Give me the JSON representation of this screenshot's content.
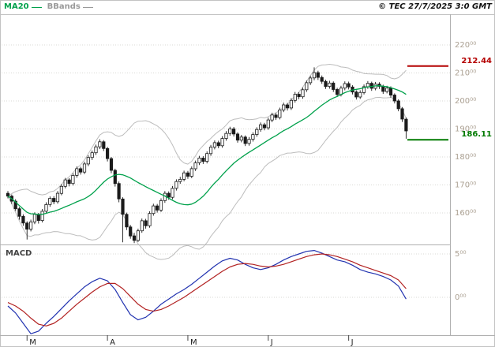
{
  "header": {
    "copyright": "© TEC 27/7/2025 3:0 GMT",
    "legend": [
      {
        "label": "MA20",
        "color": "#00a14b"
      },
      {
        "label": "BBands",
        "color": "#9a9a9a"
      }
    ]
  },
  "levels": {
    "resistance": {
      "value": "212.44",
      "color": "#b40000"
    },
    "support": {
      "value": "186.11",
      "color": "#007a00"
    }
  },
  "colors": {
    "candle": "#1a1a1a",
    "ma20": "#00a14b",
    "bbands": "#bcbcbc",
    "grid": "#d9d9d4",
    "axis_text": "#aba092",
    "frame": "#c3c3c3",
    "macd_line": "#2233b0",
    "macd_signal": "#b22222"
  },
  "chart_data": [
    {
      "type": "candlestick",
      "title": "",
      "xlabel": "",
      "ylabel": "",
      "ylim": [
        148,
        231
      ],
      "yticks": [
        160,
        170,
        180,
        190,
        200,
        210,
        220
      ],
      "ytick_superscript": "00",
      "grid": true,
      "overlays": [
        "MA20",
        "Bollinger Bands"
      ],
      "indicator_config": {
        "ma_period": 20,
        "bb_period": 20,
        "bb_std": 2
      },
      "levels": [
        {
          "name": "resistance",
          "value": 212.44,
          "color": "#b40000"
        },
        {
          "name": "support",
          "value": 186.11,
          "color": "#007a00"
        }
      ],
      "x_month_ticks": [
        {
          "label": "M",
          "index": 5
        },
        {
          "label": "A",
          "index": 26
        },
        {
          "label": "M",
          "index": 47
        },
        {
          "label": "J",
          "index": 68
        },
        {
          "label": "J",
          "index": 89
        }
      ],
      "ohlc": [
        [
          167.0,
          167.8,
          165.2,
          166.0
        ],
        [
          166.0,
          166.6,
          163.2,
          164.2
        ],
        [
          164.2,
          164.9,
          160.7,
          161.5
        ],
        [
          161.5,
          162.1,
          157.6,
          158.8
        ],
        [
          158.8,
          159.5,
          155.4,
          156.4
        ],
        [
          156.4,
          157.0,
          150.5,
          154.2
        ],
        [
          154.2,
          157.6,
          153.4,
          156.8
        ],
        [
          156.8,
          160.2,
          156.0,
          159.5
        ],
        [
          159.5,
          160.0,
          156.2,
          157.3
        ],
        [
          157.3,
          161.4,
          156.6,
          160.6
        ],
        [
          160.6,
          163.8,
          159.9,
          163.0
        ],
        [
          163.0,
          165.9,
          162.2,
          165.2
        ],
        [
          165.2,
          166.0,
          163.1,
          164.0
        ],
        [
          164.0,
          167.8,
          163.3,
          167.0
        ],
        [
          167.0,
          170.3,
          166.3,
          169.5
        ],
        [
          169.5,
          172.5,
          168.8,
          171.8
        ],
        [
          171.8,
          172.4,
          169.5,
          170.5
        ],
        [
          170.5,
          174.2,
          169.8,
          173.4
        ],
        [
          173.4,
          176.6,
          172.6,
          175.8
        ],
        [
          175.8,
          176.5,
          173.7,
          174.6
        ],
        [
          174.6,
          178.3,
          173.9,
          177.5
        ],
        [
          177.5,
          180.6,
          176.7,
          179.8
        ],
        [
          179.8,
          182.3,
          178.9,
          181.5
        ],
        [
          181.5,
          184.4,
          180.7,
          183.6
        ],
        [
          183.6,
          186.3,
          182.8,
          185.4
        ],
        [
          185.4,
          186.0,
          182.1,
          183.0
        ],
        [
          183.0,
          183.6,
          178.4,
          179.4
        ],
        [
          179.4,
          180.0,
          174.2,
          175.2
        ],
        [
          175.2,
          175.8,
          169.4,
          170.5
        ],
        [
          170.5,
          171.2,
          163.8,
          165.0
        ],
        [
          165.0,
          165.6,
          149.5,
          159.5
        ],
        [
          159.5,
          160.1,
          153.9,
          155.0
        ],
        [
          155.0,
          155.7,
          150.8,
          151.8
        ],
        [
          151.8,
          152.9,
          149.2,
          150.2
        ],
        [
          150.2,
          154.4,
          149.6,
          153.6
        ],
        [
          153.6,
          158.0,
          152.9,
          157.2
        ],
        [
          157.2,
          157.9,
          154.4,
          155.4
        ],
        [
          155.4,
          160.6,
          154.7,
          159.8
        ],
        [
          159.8,
          163.3,
          159.0,
          162.5
        ],
        [
          162.5,
          163.2,
          160.1,
          161.0
        ],
        [
          161.0,
          165.2,
          160.3,
          164.4
        ],
        [
          164.4,
          167.8,
          163.6,
          167.0
        ],
        [
          167.0,
          167.7,
          164.7,
          165.6
        ],
        [
          165.6,
          169.6,
          164.9,
          168.8
        ],
        [
          168.8,
          172.0,
          168.0,
          171.2
        ],
        [
          171.2,
          172.9,
          170.4,
          172.0
        ],
        [
          172.0,
          175.1,
          171.3,
          174.3
        ],
        [
          174.3,
          175.0,
          172.2,
          173.1
        ],
        [
          173.1,
          176.6,
          172.4,
          175.8
        ],
        [
          175.8,
          178.7,
          175.0,
          177.9
        ],
        [
          177.9,
          180.4,
          177.1,
          179.6
        ],
        [
          179.6,
          180.3,
          177.5,
          178.4
        ],
        [
          178.4,
          182.0,
          177.7,
          181.2
        ],
        [
          181.2,
          184.3,
          180.4,
          183.5
        ],
        [
          183.5,
          185.9,
          182.7,
          185.1
        ],
        [
          185.1,
          185.8,
          183.1,
          184.0
        ],
        [
          184.0,
          187.4,
          183.3,
          186.6
        ],
        [
          186.6,
          189.2,
          185.8,
          188.4
        ],
        [
          188.4,
          190.8,
          187.6,
          190.0
        ],
        [
          190.0,
          190.7,
          187.3,
          188.2
        ],
        [
          188.2,
          188.8,
          185.1,
          186.0
        ],
        [
          186.0,
          187.9,
          185.2,
          187.1
        ],
        [
          187.1,
          187.7,
          183.9,
          184.8
        ],
        [
          184.8,
          187.1,
          184.0,
          186.3
        ],
        [
          186.3,
          188.8,
          185.5,
          188.0
        ],
        [
          188.0,
          190.6,
          187.2,
          189.8
        ],
        [
          189.8,
          192.3,
          189.0,
          191.5
        ],
        [
          191.5,
          192.2,
          189.5,
          190.4
        ],
        [
          190.4,
          194.0,
          189.7,
          193.2
        ],
        [
          193.2,
          195.8,
          192.4,
          195.0
        ],
        [
          195.0,
          195.7,
          193.2,
          194.1
        ],
        [
          194.1,
          197.6,
          193.4,
          196.8
        ],
        [
          196.8,
          199.4,
          196.0,
          198.6
        ],
        [
          198.6,
          199.3,
          196.6,
          197.5
        ],
        [
          197.5,
          201.0,
          196.8,
          200.2
        ],
        [
          200.2,
          203.2,
          199.4,
          202.4
        ],
        [
          202.4,
          203.1,
          200.6,
          201.5
        ],
        [
          201.5,
          204.8,
          200.8,
          204.0
        ],
        [
          204.0,
          207.3,
          203.2,
          206.5
        ],
        [
          206.5,
          209.0,
          205.7,
          208.2
        ],
        [
          208.2,
          212.0,
          207.4,
          210.1
        ],
        [
          210.1,
          210.8,
          207.5,
          208.4
        ],
        [
          208.4,
          209.1,
          206.1,
          207.0
        ],
        [
          207.0,
          207.6,
          204.3,
          205.2
        ],
        [
          205.2,
          207.2,
          204.4,
          206.4
        ],
        [
          206.4,
          207.0,
          203.2,
          204.1
        ],
        [
          204.1,
          204.7,
          201.4,
          202.3
        ],
        [
          202.3,
          205.4,
          201.6,
          204.6
        ],
        [
          204.6,
          207.0,
          203.8,
          206.2
        ],
        [
          206.2,
          206.9,
          204.1,
          205.0
        ],
        [
          205.0,
          205.6,
          202.3,
          203.2
        ],
        [
          203.2,
          203.8,
          200.5,
          201.4
        ],
        [
          201.4,
          203.8,
          200.7,
          203.0
        ],
        [
          203.0,
          205.9,
          202.3,
          205.1
        ],
        [
          205.1,
          207.1,
          204.3,
          206.3
        ],
        [
          206.3,
          206.9,
          203.6,
          204.5
        ],
        [
          204.5,
          206.8,
          203.8,
          206.0
        ],
        [
          206.0,
          206.7,
          204.3,
          205.2
        ],
        [
          205.2,
          205.8,
          202.5,
          203.4
        ],
        [
          203.4,
          205.4,
          202.7,
          204.6
        ],
        [
          204.6,
          205.2,
          201.2,
          202.1
        ],
        [
          202.1,
          202.7,
          199.1,
          200.0
        ],
        [
          200.0,
          200.6,
          196.3,
          197.2
        ],
        [
          197.2,
          197.8,
          192.5,
          193.5
        ],
        [
          193.5,
          194.1,
          186.5,
          189.3
        ]
      ]
    },
    {
      "type": "line",
      "title": "MACD",
      "xlabel": "",
      "ylabel": "",
      "ylim": [
        -4.5,
        5.8
      ],
      "yticks": [
        5,
        0
      ],
      "ytick_superscript": "00",
      "series": [
        {
          "name": "MACD",
          "color": "#2233b0",
          "points": [
            [
              0,
              -1.0
            ],
            [
              2,
              -1.8
            ],
            [
              4,
              -3.0
            ],
            [
              6,
              -4.2
            ],
            [
              8,
              -3.9
            ],
            [
              10,
              -3.0
            ],
            [
              12,
              -2.2
            ],
            [
              14,
              -1.3
            ],
            [
              16,
              -0.4
            ],
            [
              18,
              0.4
            ],
            [
              20,
              1.2
            ],
            [
              22,
              1.8
            ],
            [
              24,
              2.2
            ],
            [
              26,
              1.9
            ],
            [
              28,
              0.9
            ],
            [
              30,
              -0.6
            ],
            [
              32,
              -2.0
            ],
            [
              34,
              -2.6
            ],
            [
              36,
              -2.3
            ],
            [
              38,
              -1.6
            ],
            [
              40,
              -0.8
            ],
            [
              42,
              -0.2
            ],
            [
              44,
              0.4
            ],
            [
              46,
              0.9
            ],
            [
              48,
              1.5
            ],
            [
              50,
              2.2
            ],
            [
              52,
              2.9
            ],
            [
              54,
              3.6
            ],
            [
              56,
              4.2
            ],
            [
              58,
              4.5
            ],
            [
              60,
              4.3
            ],
            [
              62,
              3.8
            ],
            [
              64,
              3.4
            ],
            [
              66,
              3.2
            ],
            [
              68,
              3.4
            ],
            [
              70,
              3.8
            ],
            [
              72,
              4.3
            ],
            [
              74,
              4.7
            ],
            [
              76,
              5.0
            ],
            [
              78,
              5.3
            ],
            [
              80,
              5.4
            ],
            [
              82,
              5.1
            ],
            [
              84,
              4.7
            ],
            [
              86,
              4.3
            ],
            [
              88,
              4.1
            ],
            [
              90,
              3.7
            ],
            [
              92,
              3.2
            ],
            [
              94,
              2.9
            ],
            [
              96,
              2.7
            ],
            [
              98,
              2.4
            ],
            [
              100,
              2.0
            ],
            [
              102,
              1.3
            ],
            [
              104,
              -0.2
            ]
          ]
        },
        {
          "name": "Signal",
          "color": "#b22222",
          "points": [
            [
              0,
              -0.6
            ],
            [
              2,
              -1.0
            ],
            [
              4,
              -1.6
            ],
            [
              6,
              -2.4
            ],
            [
              8,
              -3.1
            ],
            [
              10,
              -3.3
            ],
            [
              12,
              -3.0
            ],
            [
              14,
              -2.4
            ],
            [
              16,
              -1.6
            ],
            [
              18,
              -0.8
            ],
            [
              20,
              -0.1
            ],
            [
              22,
              0.6
            ],
            [
              24,
              1.2
            ],
            [
              26,
              1.6
            ],
            [
              28,
              1.6
            ],
            [
              30,
              1.0
            ],
            [
              32,
              0.1
            ],
            [
              34,
              -0.8
            ],
            [
              36,
              -1.4
            ],
            [
              38,
              -1.6
            ],
            [
              40,
              -1.4
            ],
            [
              42,
              -1.0
            ],
            [
              44,
              -0.5
            ],
            [
              46,
              0.0
            ],
            [
              48,
              0.6
            ],
            [
              50,
              1.2
            ],
            [
              52,
              1.8
            ],
            [
              54,
              2.4
            ],
            [
              56,
              3.0
            ],
            [
              58,
              3.5
            ],
            [
              60,
              3.8
            ],
            [
              62,
              3.9
            ],
            [
              64,
              3.8
            ],
            [
              66,
              3.6
            ],
            [
              68,
              3.5
            ],
            [
              70,
              3.6
            ],
            [
              72,
              3.8
            ],
            [
              74,
              4.1
            ],
            [
              76,
              4.4
            ],
            [
              78,
              4.7
            ],
            [
              80,
              4.9
            ],
            [
              82,
              5.0
            ],
            [
              84,
              4.9
            ],
            [
              86,
              4.7
            ],
            [
              88,
              4.4
            ],
            [
              90,
              4.1
            ],
            [
              92,
              3.7
            ],
            [
              94,
              3.4
            ],
            [
              96,
              3.1
            ],
            [
              98,
              2.8
            ],
            [
              100,
              2.5
            ],
            [
              102,
              2.0
            ],
            [
              104,
              1.0
            ]
          ]
        }
      ]
    }
  ]
}
